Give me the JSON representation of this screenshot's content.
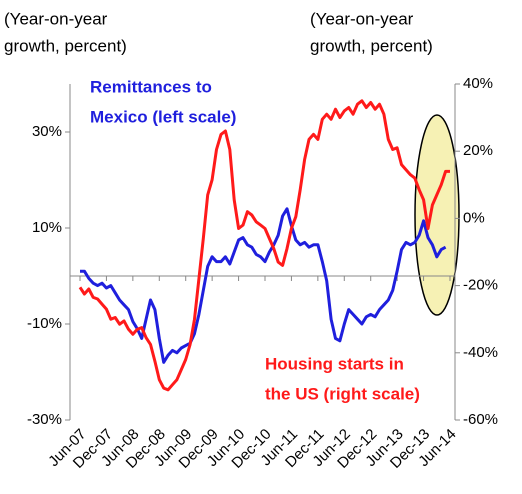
{
  "chart_data": {
    "type": "line",
    "left_axis_label": [
      "(Year-on-year",
      "growth, percent)"
    ],
    "right_axis_label": [
      "(Year-on-year",
      "growth, percent)"
    ],
    "annotations": [
      {
        "lines": [
          "Remittances to",
          "Mexico (left scale)"
        ],
        "color": "#1f1fdd"
      },
      {
        "lines": [
          "Housing starts in",
          "the US (right scale)"
        ],
        "color": "#ff1a1a"
      }
    ],
    "categories": [
      "Jun-07",
      null,
      null,
      null,
      null,
      null,
      "Dec-07",
      null,
      null,
      null,
      null,
      null,
      "Jun-08",
      null,
      null,
      null,
      null,
      null,
      "Dec-08",
      null,
      null,
      null,
      null,
      null,
      "Jun-09",
      null,
      null,
      null,
      null,
      null,
      "Dec-09",
      null,
      null,
      null,
      null,
      null,
      "Jun-10",
      null,
      null,
      null,
      null,
      null,
      "Dec-10",
      null,
      null,
      null,
      null,
      null,
      "Jun-11",
      null,
      null,
      null,
      null,
      null,
      "Dec-11",
      null,
      null,
      null,
      null,
      null,
      "Jun-12",
      null,
      null,
      null,
      null,
      null,
      "Dec-12",
      null,
      null,
      null,
      null,
      null,
      "Jun-13",
      null,
      null,
      null,
      null,
      null,
      "Dec-13",
      null,
      null,
      null,
      null,
      null,
      "Jun-14"
    ],
    "series": [
      {
        "name": "Remittances to Mexico",
        "color": "#1f1fdd",
        "axis": "y",
        "values": [
          1,
          1,
          -0.5,
          -1.5,
          -2,
          -1.5,
          -2.5,
          -2,
          -3.5,
          -5,
          -6,
          -7,
          -9.5,
          -11,
          -13,
          -9,
          -5,
          -7,
          -13,
          -18,
          -16.5,
          -15.5,
          -16,
          -15,
          -14.5,
          -14,
          -12,
          -8,
          -3,
          2,
          4,
          3,
          3,
          4,
          2.5,
          5,
          7.5,
          8,
          6.5,
          6,
          4.5,
          4,
          3,
          5,
          6.5,
          8.5,
          12.5,
          14,
          10.5,
          7.5,
          6.5,
          7,
          6,
          6.5,
          6.5,
          3,
          -1,
          -9,
          -13,
          -13.5,
          -10,
          -7,
          -8,
          -9,
          -10,
          -8.5,
          -8,
          -8.5,
          -7,
          -6,
          -5,
          -3,
          1,
          5.5,
          7,
          6.5,
          7,
          8.5,
          11.5,
          8,
          6.5,
          4,
          5.5,
          6,
          null
        ]
      },
      {
        "name": "Housing starts in the US",
        "color": "#ff1a1a",
        "axis": "y2",
        "values": [
          -20.5,
          -22.5,
          -21,
          -23.5,
          -24,
          -25.5,
          -27,
          -30,
          -29.5,
          -31.5,
          -30.5,
          -33,
          -34.5,
          -33,
          -32.5,
          -35.5,
          -37.5,
          -42.5,
          -48,
          -50.5,
          -51,
          -49.5,
          -48,
          -45,
          -42,
          -37.5,
          -30,
          -18,
          -6,
          7,
          11.5,
          20.5,
          25,
          26,
          20.5,
          5.5,
          -3,
          -2,
          2,
          1,
          -1,
          -2,
          -3,
          -6,
          -9,
          -13,
          -14,
          -9,
          -3,
          0.5,
          8.5,
          17.5,
          23.5,
          25,
          23.5,
          29.5,
          31,
          29.5,
          32.5,
          30,
          32,
          33,
          31,
          34,
          35,
          33,
          34.5,
          32.5,
          34,
          31,
          23.5,
          20.5,
          21,
          16,
          14.5,
          13,
          12,
          8.5,
          5.5,
          -3,
          4,
          7,
          10,
          14,
          14
        ]
      }
    ],
    "ylim": [
      -30,
      40
    ],
    "yticks": [
      {
        "value": -30,
        "label": "-30%"
      },
      {
        "value": -10,
        "label": "-10%"
      },
      {
        "value": 10,
        "label": "10%"
      },
      {
        "value": 30,
        "label": "30%"
      }
    ],
    "y2lim": [
      -60,
      40
    ],
    "y2ticks": [
      {
        "value": -60,
        "label": "-60%"
      },
      {
        "value": -40,
        "label": "-40%"
      },
      {
        "value": -20,
        "label": "-20%"
      },
      {
        "value": 0,
        "label": "0%"
      },
      {
        "value": 20,
        "label": "20%"
      },
      {
        "value": 40,
        "label": "40%"
      }
    ]
  }
}
